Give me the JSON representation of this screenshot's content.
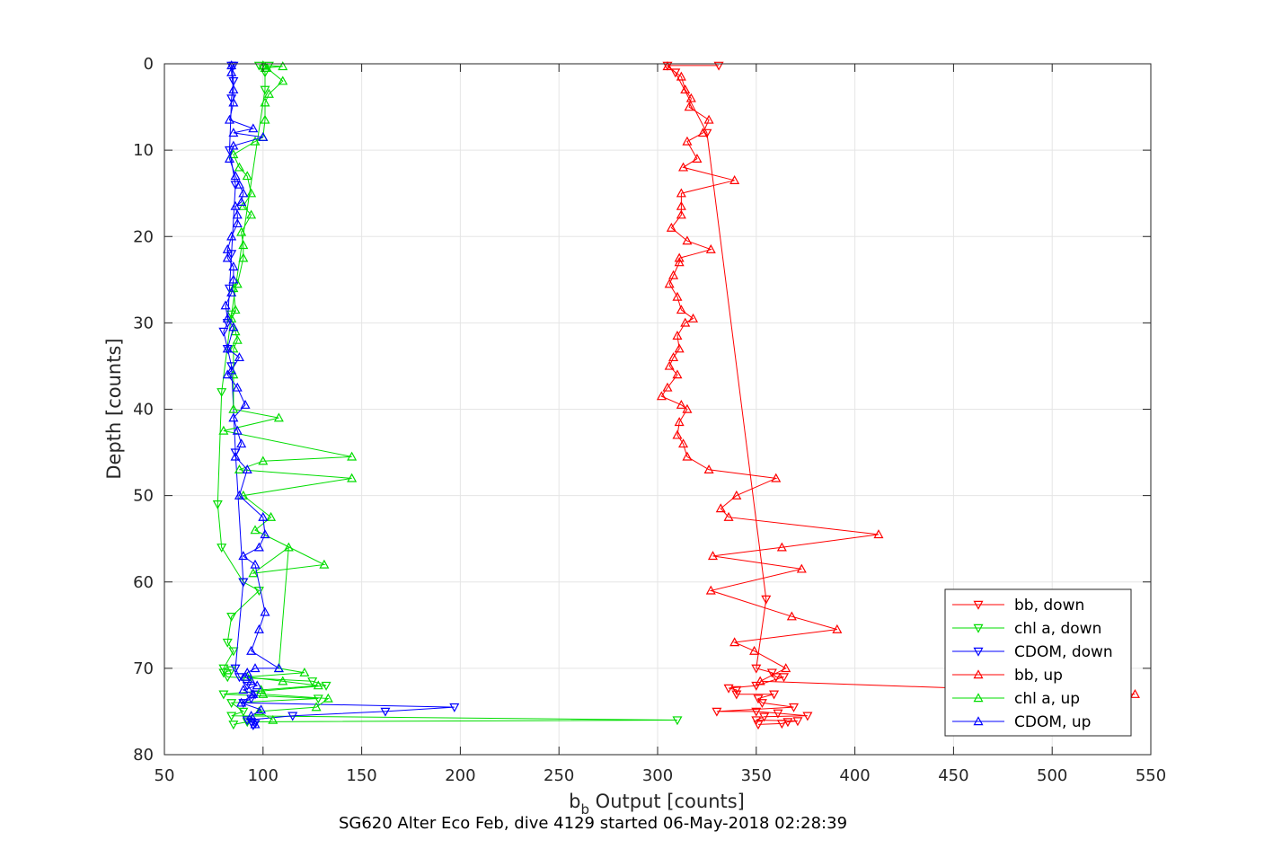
{
  "chart_data": {
    "type": "line",
    "title": "",
    "xlabel_main": "b",
    "xlabel_sub": "b",
    "xlabel_rest": " Output [counts]",
    "ylabel": "Depth [counts]",
    "footer": "SG620 Alter Eco Feb, dive 4129 started 06-May-2018 02:28:39",
    "xlim": [
      50,
      550
    ],
    "ylim": [
      0,
      80
    ],
    "y_reversed": true,
    "grid": true,
    "legend_position": "bottom-right",
    "xticks": [
      "50",
      "100",
      "150",
      "200",
      "250",
      "300",
      "350",
      "400",
      "450",
      "500",
      "550"
    ],
    "yticks": [
      "0",
      "10",
      "20",
      "30",
      "40",
      "50",
      "60",
      "70",
      "80"
    ],
    "colors": {
      "red": "#ff0000",
      "green": "#00dd00",
      "blue": "#0000ff",
      "axis": "#262626",
      "grid": "#e5e5e5"
    },
    "series": [
      {
        "name": "bb, down",
        "color": "#ff0000",
        "marker": "down",
        "x": [
          331,
          305,
          309,
          325,
          355,
          350,
          358,
          360,
          364,
          350,
          336,
          340,
          340,
          359,
          351,
          353,
          369,
          330,
          350,
          361,
          376,
          354,
          350,
          371,
          366,
          363,
          351
        ],
        "y": [
          0.2,
          0.2,
          1,
          8,
          62,
          70,
          70.5,
          71,
          71,
          72,
          72.3,
          72.5,
          73,
          73,
          73.5,
          74,
          74.5,
          75,
          75,
          75.2,
          75.5,
          75.6,
          76,
          76.1,
          76.2,
          76.4,
          76.5
        ]
      },
      {
        "name": "chl a, down",
        "color": "#00dd00",
        "marker": "down",
        "x": [
          103,
          98,
          101,
          101,
          84,
          79,
          77,
          79,
          90,
          98,
          84,
          82,
          85,
          80,
          84,
          80,
          82,
          125,
          132,
          80,
          128,
          84,
          90,
          84,
          310,
          92,
          85
        ],
        "y": [
          0.2,
          0.2,
          1,
          3,
          29,
          38,
          51,
          56,
          60,
          61,
          64,
          67,
          68,
          70,
          70.2,
          70.5,
          71,
          71.5,
          72,
          73,
          73.5,
          74,
          75,
          75.5,
          76,
          76.2,
          76.5
        ]
      },
      {
        "name": "CDOM, down",
        "color": "#0000ff",
        "marker": "down",
        "x": [
          85,
          84,
          85,
          84,
          83,
          86,
          84,
          83,
          82,
          80,
          82,
          84,
          86,
          90,
          86,
          88,
          92,
          96,
          94,
          90,
          197,
          162,
          115,
          92,
          94,
          96,
          95
        ],
        "y": [
          0.2,
          0.2,
          2,
          4,
          10,
          14,
          22,
          26,
          30,
          31,
          33,
          35,
          45,
          60,
          70,
          71,
          72,
          73,
          73.5,
          74,
          74.5,
          75,
          75.5,
          76,
          76.2,
          76.4,
          76.6
        ]
      },
      {
        "name": "bb, up",
        "color": "#ff0000",
        "marker": "up",
        "x": [
          542,
          352,
          365,
          349,
          339,
          391,
          368,
          327,
          373,
          328,
          363,
          412,
          336,
          332,
          340,
          360,
          326,
          315,
          313,
          310,
          311,
          315,
          312,
          302,
          305,
          310,
          306,
          308,
          311,
          310,
          314,
          318,
          312,
          310,
          306,
          308,
          311,
          311,
          327,
          315,
          307,
          312,
          312,
          312,
          339,
          313,
          320,
          315,
          323,
          326,
          316,
          317,
          314,
          312,
          305
        ],
        "y": [
          73,
          71.5,
          70,
          68,
          67,
          65.5,
          64,
          61,
          58.5,
          57,
          56,
          54.5,
          52.5,
          51.5,
          50,
          48,
          47,
          45.5,
          44,
          43,
          41.5,
          40,
          39.5,
          38.5,
          37.5,
          36,
          35,
          34,
          33,
          31.5,
          30,
          29.5,
          28.5,
          27,
          25.5,
          24.5,
          23,
          22.5,
          21.5,
          20.5,
          19,
          17.5,
          16.5,
          15,
          13.5,
          12,
          11,
          9,
          8,
          6.5,
          5,
          4,
          3,
          1.5,
          0.3
        ]
      },
      {
        "name": "chl a, up",
        "color": "#00dd00",
        "marker": "up",
        "x": [
          105,
          98,
          127,
          133,
          100,
          99,
          128,
          110,
          92,
          121,
          108,
          113,
          95,
          131,
          96,
          104,
          90,
          145,
          88,
          100,
          145,
          80,
          108,
          85,
          85,
          85,
          87,
          86,
          84,
          86,
          85,
          87,
          90,
          90,
          89,
          94,
          90,
          94,
          92,
          88,
          85,
          96,
          100,
          101,
          101,
          103,
          110,
          102,
          101,
          110,
          100
        ],
        "y": [
          76,
          75,
          74.5,
          73.5,
          73,
          72.5,
          72,
          71.5,
          71,
          70.5,
          70,
          56,
          59,
          58,
          54,
          52.5,
          50,
          48,
          47,
          46,
          45.5,
          42.5,
          41,
          40,
          36,
          33,
          32,
          31,
          29.5,
          28.5,
          26,
          25.5,
          22.5,
          21,
          19.5,
          17.5,
          16.5,
          15,
          13,
          12,
          10.5,
          9,
          8.5,
          6.5,
          4.5,
          3.5,
          2,
          0.5,
          0.5,
          0.3,
          0.2
        ]
      },
      {
        "name": "CDOM, up",
        "color": "#0000ff",
        "marker": "up",
        "x": [
          96,
          94,
          99,
          89,
          95,
          90,
          97,
          94,
          91,
          92,
          96,
          108,
          94,
          98,
          101,
          96,
          90,
          98,
          101,
          100,
          88,
          92,
          86,
          89,
          87,
          85,
          91,
          87,
          82,
          84,
          88,
          82,
          85,
          82,
          81,
          84,
          85,
          85,
          82,
          82,
          84,
          87,
          87,
          86,
          89,
          90,
          88,
          86,
          83,
          85,
          100,
          85,
          95,
          83,
          85,
          85,
          84,
          84
        ],
        "y": [
          76.5,
          75.5,
          74.8,
          74,
          73,
          72.5,
          72,
          71.5,
          71,
          70.5,
          70,
          70,
          68,
          65.5,
          63.5,
          58,
          57,
          56,
          54.5,
          52.5,
          50,
          47,
          45.5,
          44,
          42.5,
          41,
          39.5,
          37.5,
          36,
          35.5,
          34,
          33,
          30.5,
          29.5,
          28,
          26.5,
          25,
          23.5,
          22.5,
          21.5,
          20,
          18.5,
          17.5,
          16.5,
          16,
          15,
          14,
          13,
          11,
          9.5,
          8.5,
          8,
          7.5,
          6.5,
          4.5,
          3,
          1,
          0.2
        ]
      }
    ]
  }
}
